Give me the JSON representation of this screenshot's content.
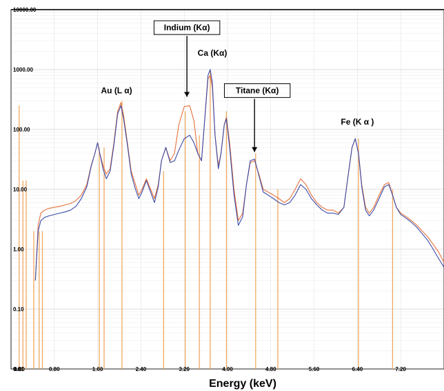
{
  "chart_data": {
    "type": "line",
    "title": "",
    "xlabel": "Energy (keV)",
    "ylabel": "",
    "yscale": "log",
    "xlim": [
      0.0,
      8.0
    ],
    "ylim": [
      0.01,
      10000
    ],
    "grid": true,
    "legend": "none",
    "x_ticks": [
      "0.00",
      "0.80",
      "1.60",
      "2.40",
      "3.20",
      "4.00",
      "4.80",
      "5.60",
      "6.40",
      "7.20"
    ],
    "x_tick_values": [
      0.0,
      0.8,
      1.6,
      2.4,
      3.2,
      4.0,
      4.8,
      5.6,
      6.4,
      7.2
    ],
    "y_ticks": [
      "10000.00",
      "1000.00",
      "100.00",
      "10.00",
      "1.00",
      "0.10",
      "0.01"
    ],
    "y_tick_values": [
      10000,
      1000,
      100,
      10,
      1,
      0.1,
      0.01
    ],
    "colors": {
      "series_1": "#e8703a",
      "series_2": "#3a4aa8",
      "marker_lines": "#f0a860"
    },
    "annotations": [
      {
        "text": "Au (L α)",
        "x": 1.95,
        "y": 400,
        "boxed": false,
        "arrow": false
      },
      {
        "text": "Indium (Kα)",
        "x": 3.25,
        "y": 4500,
        "boxed": true,
        "arrow": true,
        "arrow_to_y": 350
      },
      {
        "text": "Ca (Kα)",
        "x": 3.72,
        "y": 1700,
        "boxed": false,
        "arrow": false
      },
      {
        "text": "Titane (Kα)",
        "x": 4.55,
        "y": 400,
        "boxed": true,
        "arrow": true,
        "arrow_to_y": 42
      },
      {
        "text": "Fe (K α )",
        "x": 6.4,
        "y": 120,
        "boxed": false,
        "arrow": false
      }
    ],
    "marker_lines": [
      {
        "x": 0.15,
        "y": 250
      },
      {
        "x": 0.22,
        "y": 14
      },
      {
        "x": 0.28,
        "y": 14
      },
      {
        "x": 0.42,
        "y": 2
      },
      {
        "x": 0.52,
        "y": 2
      },
      {
        "x": 0.58,
        "y": 2
      },
      {
        "x": 1.63,
        "y": 50
      },
      {
        "x": 1.72,
        "y": 50
      },
      {
        "x": 2.05,
        "y": 300
      },
      {
        "x": 2.82,
        "y": 20
      },
      {
        "x": 3.22,
        "y": 200
      },
      {
        "x": 3.48,
        "y": 80
      },
      {
        "x": 3.68,
        "y": 1000
      },
      {
        "x": 3.98,
        "y": 200
      },
      {
        "x": 4.52,
        "y": 40
      },
      {
        "x": 4.93,
        "y": 10
      },
      {
        "x": 6.42,
        "y": 70
      },
      {
        "x": 7.05,
        "y": 10
      }
    ],
    "series": [
      {
        "x": [
          0.45,
          0.5,
          0.55,
          0.62,
          0.7,
          0.8,
          0.9,
          1.0,
          1.1,
          1.2,
          1.3,
          1.4,
          1.48,
          1.55,
          1.6,
          1.64,
          1.7,
          1.76,
          1.83,
          1.9,
          1.97,
          2.03,
          2.08,
          2.15,
          2.22,
          2.3,
          2.36,
          2.42,
          2.5,
          2.58,
          2.65,
          2.72,
          2.78,
          2.86,
          2.94,
          3.02,
          3.1,
          3.2,
          3.3,
          3.38,
          3.45,
          3.52,
          3.58,
          3.64,
          3.68,
          3.72,
          3.77,
          3.83,
          3.88,
          3.94,
          3.98,
          4.04,
          4.12,
          4.2,
          4.28,
          4.35,
          4.42,
          4.5,
          4.58,
          4.66,
          4.75,
          4.85,
          4.95,
          5.05,
          5.15,
          5.25,
          5.35,
          5.45,
          5.55,
          5.65,
          5.75,
          5.85,
          5.95,
          6.05,
          6.15,
          6.22,
          6.3,
          6.36,
          6.42,
          6.48,
          6.55,
          6.62,
          6.7,
          6.8,
          6.9,
          6.98,
          7.05,
          7.12,
          7.2,
          7.3,
          7.4,
          7.5,
          7.6,
          7.7,
          7.8,
          7.9,
          8.0
        ],
        "values": [
          0.3,
          2.5,
          4,
          4.5,
          4.8,
          5,
          5.2,
          5.5,
          5.8,
          6.5,
          8,
          12,
          25,
          40,
          60,
          40,
          25,
          18,
          22,
          60,
          200,
          280,
          170,
          60,
          20,
          12,
          8,
          10,
          15,
          10,
          7,
          12,
          30,
          50,
          30,
          40,
          120,
          240,
          250,
          140,
          40,
          30,
          150,
          700,
          800,
          500,
          80,
          25,
          40,
          120,
          160,
          60,
          10,
          3,
          4,
          12,
          28,
          30,
          18,
          10,
          9,
          8,
          7,
          6,
          7,
          10,
          15,
          12,
          8,
          6,
          5,
          4.5,
          4.5,
          4,
          5,
          15,
          50,
          70,
          40,
          12,
          5,
          4,
          5,
          8,
          12,
          13,
          8,
          5,
          4,
          3.5,
          3,
          2.5,
          2,
          1.6,
          1.2,
          0.9,
          0.6
        ]
      },
      {
        "x": [
          0.45,
          0.5,
          0.55,
          0.62,
          0.7,
          0.8,
          0.9,
          1.0,
          1.1,
          1.2,
          1.3,
          1.4,
          1.48,
          1.55,
          1.6,
          1.64,
          1.7,
          1.76,
          1.83,
          1.9,
          1.97,
          2.03,
          2.08,
          2.15,
          2.22,
          2.3,
          2.36,
          2.42,
          2.5,
          2.58,
          2.65,
          2.72,
          2.78,
          2.86,
          2.94,
          3.02,
          3.1,
          3.2,
          3.3,
          3.38,
          3.45,
          3.52,
          3.58,
          3.64,
          3.68,
          3.72,
          3.77,
          3.83,
          3.88,
          3.94,
          3.98,
          4.04,
          4.12,
          4.2,
          4.28,
          4.35,
          4.42,
          4.5,
          4.58,
          4.66,
          4.75,
          4.85,
          4.95,
          5.05,
          5.15,
          5.25,
          5.35,
          5.45,
          5.55,
          5.65,
          5.75,
          5.85,
          5.95,
          6.05,
          6.15,
          6.22,
          6.3,
          6.36,
          6.42,
          6.48,
          6.55,
          6.62,
          6.7,
          6.8,
          6.9,
          6.98,
          7.05,
          7.12,
          7.2,
          7.3,
          7.4,
          7.5,
          7.6,
          7.7,
          7.8,
          7.9,
          8.0
        ],
        "values": [
          0.3,
          2,
          3,
          3.4,
          3.6,
          3.8,
          4,
          4.2,
          4.5,
          5.2,
          7,
          11,
          24,
          40,
          60,
          40,
          22,
          15,
          20,
          55,
          180,
          250,
          150,
          55,
          18,
          10,
          7,
          9,
          14,
          9,
          6,
          11,
          30,
          50,
          28,
          30,
          45,
          70,
          80,
          60,
          40,
          30,
          150,
          800,
          1000,
          600,
          80,
          22,
          40,
          120,
          150,
          50,
          8,
          2.5,
          3.5,
          12,
          30,
          32,
          17,
          9,
          8,
          7,
          6,
          5.5,
          6,
          8,
          12,
          10,
          7,
          5.5,
          4.5,
          4,
          4,
          3.8,
          5,
          15,
          50,
          70,
          40,
          11,
          4.5,
          3.6,
          4.5,
          7,
          11,
          12,
          8,
          5,
          3.8,
          3.3,
          2.8,
          2.3,
          1.8,
          1.4,
          1,
          0.7,
          0.5
        ]
      }
    ]
  }
}
